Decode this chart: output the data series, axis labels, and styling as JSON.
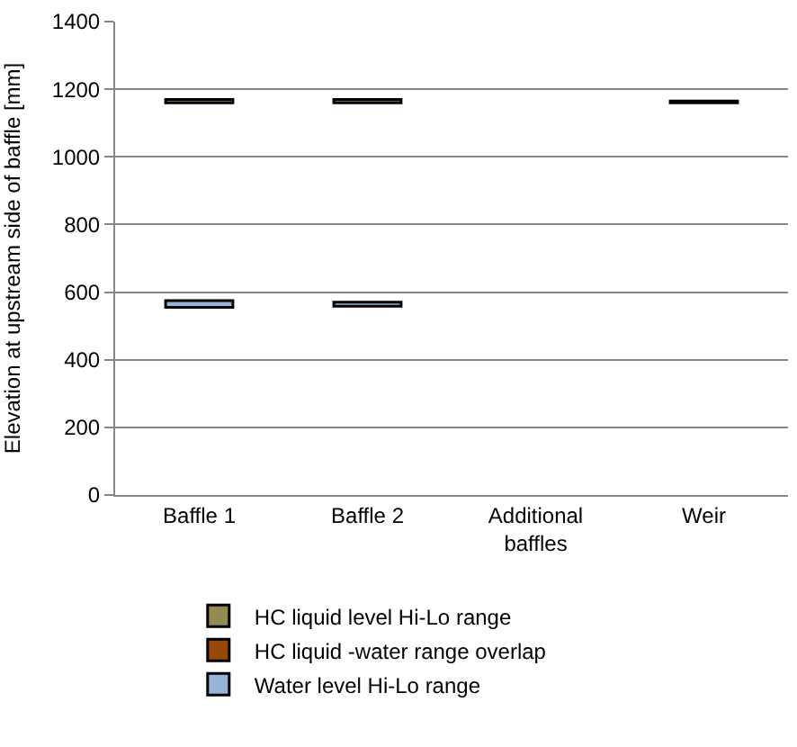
{
  "chart_data": {
    "type": "bar",
    "ylabel": "Elevation at upstream side of baffle [mm]",
    "categories": [
      "Baffle 1",
      "Baffle 2",
      "Additional baffles",
      "Weir"
    ],
    "series": [
      {
        "name": "HC liquid level Hi-Lo range",
        "color": "#948a54",
        "values": [
          10,
          10,
          null,
          5
        ],
        "base": [
          1160,
          1160,
          null,
          1160
        ]
      },
      {
        "name": "HC liquid -water range overlap",
        "color": "#974706",
        "values": [
          null,
          null,
          null,
          null
        ],
        "base": [
          null,
          null,
          null,
          null
        ]
      },
      {
        "name": "Water level Hi-Lo range",
        "color": "#95b3d7",
        "values": [
          20,
          12,
          null,
          null
        ],
        "base": [
          555,
          558,
          null,
          null
        ]
      }
    ],
    "ylim": [
      0,
      1400
    ],
    "yticks": [
      0,
      200,
      400,
      600,
      800,
      1000,
      1200,
      1400
    ],
    "grid": "y",
    "legend": "bottom"
  }
}
